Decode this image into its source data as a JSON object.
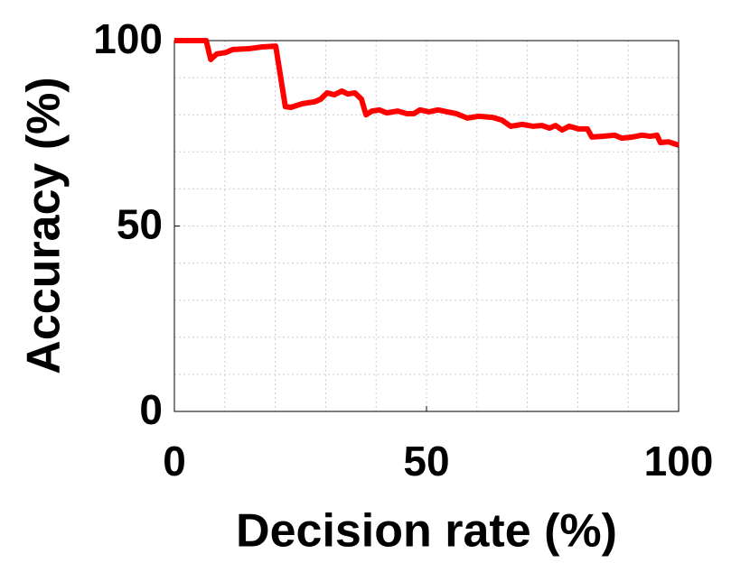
{
  "chart_data": {
    "type": "line",
    "xlabel": "Decision rate (%)",
    "ylabel": "Accuracy (%)",
    "x": [
      0,
      6.3,
      7.2,
      8.4,
      10.2,
      11.6,
      14.7,
      17.4,
      20.1,
      22,
      23.1,
      25.4,
      27.8,
      29,
      30.3,
      31.7,
      33.2,
      34.4,
      35.8,
      37.1,
      38,
      39.2,
      40.7,
      42.1,
      44.3,
      46.1,
      47.5,
      48.7,
      50.5,
      52.3,
      54.1,
      55.9,
      58.1,
      60.4,
      63.1,
      64.9,
      66.7,
      69,
      71.1,
      72.9,
      74.4,
      75.6,
      76.9,
      78.3,
      80.1,
      81.9,
      82.8,
      85.1,
      87.3,
      88.7,
      90.9,
      92.7,
      94.4,
      95.7,
      96.4,
      98,
      100
    ],
    "series": [
      {
        "color": "#ff0000",
        "values": [
          100,
          100,
          94.9,
          96.4,
          96.8,
          97.6,
          97.8,
          98.3,
          98.5,
          82.2,
          82,
          83,
          83.5,
          84.2,
          85.9,
          85.4,
          86.4,
          85.6,
          85.9,
          84.2,
          80,
          81,
          81.3,
          80.5,
          81,
          80.3,
          80.3,
          81.3,
          80.8,
          81.3,
          80.8,
          80.3,
          79.1,
          79.6,
          79.3,
          78.6,
          76.9,
          77.4,
          76.9,
          77.1,
          76.4,
          77.1,
          75.9,
          76.9,
          76.2,
          76.2,
          74,
          74.2,
          74.5,
          73.7,
          74,
          74.5,
          74.2,
          74.5,
          72.5,
          72.7,
          71.8
        ]
      }
    ],
    "xlim": [
      0,
      100
    ],
    "ylim": [
      0,
      100
    ],
    "xticks": [
      0,
      50,
      100
    ],
    "yticks": [
      0,
      50,
      100
    ],
    "xminorticks": [
      10,
      20,
      30,
      40,
      60,
      70,
      80,
      90
    ],
    "yminorticks": [
      10,
      20,
      30,
      40,
      60,
      70,
      80,
      90
    ],
    "grid": true
  }
}
